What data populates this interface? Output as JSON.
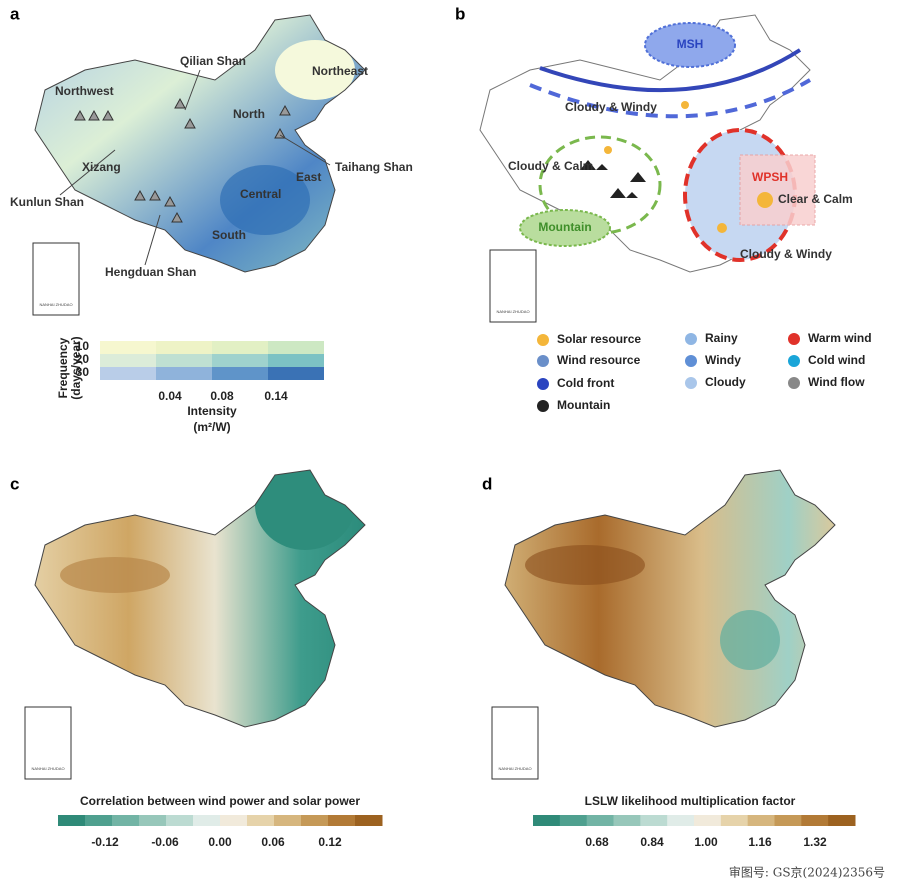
{
  "footer": "审图号: GS京(2024)2356号",
  "inset_label": "NANHAI ZHUDAO",
  "panel_a": {
    "letter": "a",
    "labels": [
      "Qilian Shan",
      "Northeast",
      "Northwest",
      "North",
      "Taihang Shan",
      "Xizang",
      "Central",
      "East",
      "Kunlun Shan",
      "South",
      "Hengduan Shan"
    ],
    "legend": {
      "y_title": "Frequency",
      "y_unit": "(days/year)",
      "y_ticks": [
        "10",
        "20",
        "30"
      ],
      "x_title": "Intensity",
      "x_unit": "(m²/W)",
      "x_ticks": [
        "0.04",
        "0.08",
        "0.14"
      ]
    }
  },
  "panel_b": {
    "letter": "b",
    "map_labels": [
      "MSH",
      "Cloudy & Windy",
      "Cloudy & Calm",
      "WPSH",
      "Clear & Calm",
      "Mountain",
      "Cloudy & Windy"
    ],
    "legend": [
      "Solar resource",
      "Wind resource",
      "Cold front",
      "Mountain",
      "Rainy",
      "Windy",
      "Cloudy",
      "Warm wind",
      "Cold wind",
      "Wind flow"
    ]
  },
  "panel_c": {
    "letter": "c",
    "colorbar_title": "Correlation between wind power and solar power",
    "colorbar_ticks": [
      "-0.12",
      "-0.06",
      "0.00",
      "0.06",
      "0.12"
    ]
  },
  "panel_d": {
    "letter": "d",
    "colorbar_title": "LSLW likelihood multiplication factor",
    "colorbar_ticks": [
      "0.68",
      "0.84",
      "1.00",
      "1.16",
      "1.32"
    ]
  }
}
